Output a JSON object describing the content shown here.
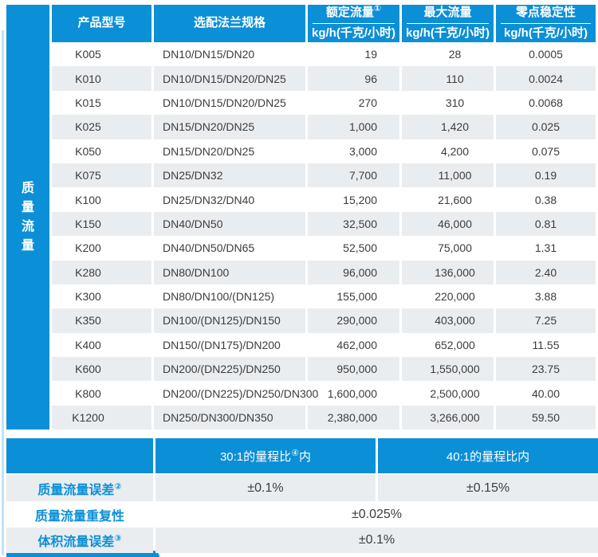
{
  "colors": {
    "primary_blue": "#0b8fd7",
    "row_alt_gray": "#eaedf0",
    "text_dark": "#3c3c3c",
    "edge_light_blue": "#bfe3f7"
  },
  "left_group": {
    "label": "质量流量"
  },
  "table": {
    "headers": {
      "model": "产品型号",
      "flange": "选配法兰规格",
      "rated": {
        "line1": "额定流量",
        "sup": "①",
        "line2": "kg/h(千克/小时)"
      },
      "max": {
        "line1": "最大流量",
        "sup": "",
        "line2": "kg/h(千克/小时)"
      },
      "zero": {
        "line1": "零点稳定性",
        "sup": "",
        "line2": "kg/h(千克/小时)"
      }
    },
    "rows": [
      [
        "K005",
        "DN10/DN15/DN20",
        "19",
        "28",
        "0.0005"
      ],
      [
        "K010",
        "DN10/DN15/DN20/DN25",
        "96",
        "110",
        "0.0024"
      ],
      [
        "K015",
        "DN10/DN15/DN20/DN25",
        "270",
        "310",
        "0.0068"
      ],
      [
        "K025",
        "DN15/DN20/DN25",
        "1,000",
        "1,420",
        "0.025"
      ],
      [
        "K050",
        "DN15/DN20/DN25",
        "3,000",
        "4,200",
        "0.075"
      ],
      [
        "K075",
        "DN25/DN32",
        "7,700",
        "11,000",
        "0.19"
      ],
      [
        "K100",
        "DN25/DN32/DN40",
        "15,200",
        "21,600",
        "0.38"
      ],
      [
        "K150",
        "DN40/DN50",
        "32,500",
        "46,000",
        "0.81"
      ],
      [
        "K200",
        "DN40/DN50/DN65",
        "52,500",
        "75,000",
        "1.31"
      ],
      [
        "K280",
        "DN80/DN100",
        "96,000",
        "136,000",
        "2.40"
      ],
      [
        "K300",
        "DN80/DN100/(DN125)",
        "155,000",
        "220,000",
        "3.88"
      ],
      [
        "K350",
        "DN100/(DN125)/DN150",
        "290,000",
        "403,000",
        "7.25"
      ],
      [
        "K400",
        "DN150/(DN175)/DN200",
        "462,000",
        "652,000",
        "11.55"
      ],
      [
        "K600",
        "DN200/(DN225)/DN250",
        "950,000",
        "1,550,000",
        "23.75"
      ],
      [
        "K800",
        "DN200/(DN225)/DN250/DN300",
        "1,600,000",
        "2,500,000",
        "40.00"
      ],
      [
        "K1200",
        "DN250/DN300/DN350",
        "2,380,000",
        "3,266,000",
        "59.50"
      ]
    ]
  },
  "bottom": {
    "range30": {
      "pre": "30:1的量程比",
      "sup": "④",
      "post": "内"
    },
    "range40": {
      "pre": "40:1的量程比内",
      "sup": "",
      "post": ""
    },
    "mass_error": {
      "label": "质量流量误差",
      "sup": "②",
      "value30": "±0.1%",
      "value40": "±0.15%"
    },
    "repeatability": {
      "label": "质量流量重复性",
      "sup": "",
      "value": "±0.025%"
    },
    "volume_error": {
      "label": "体积流量误差",
      "sup": "③",
      "value": "±0.1%"
    }
  }
}
